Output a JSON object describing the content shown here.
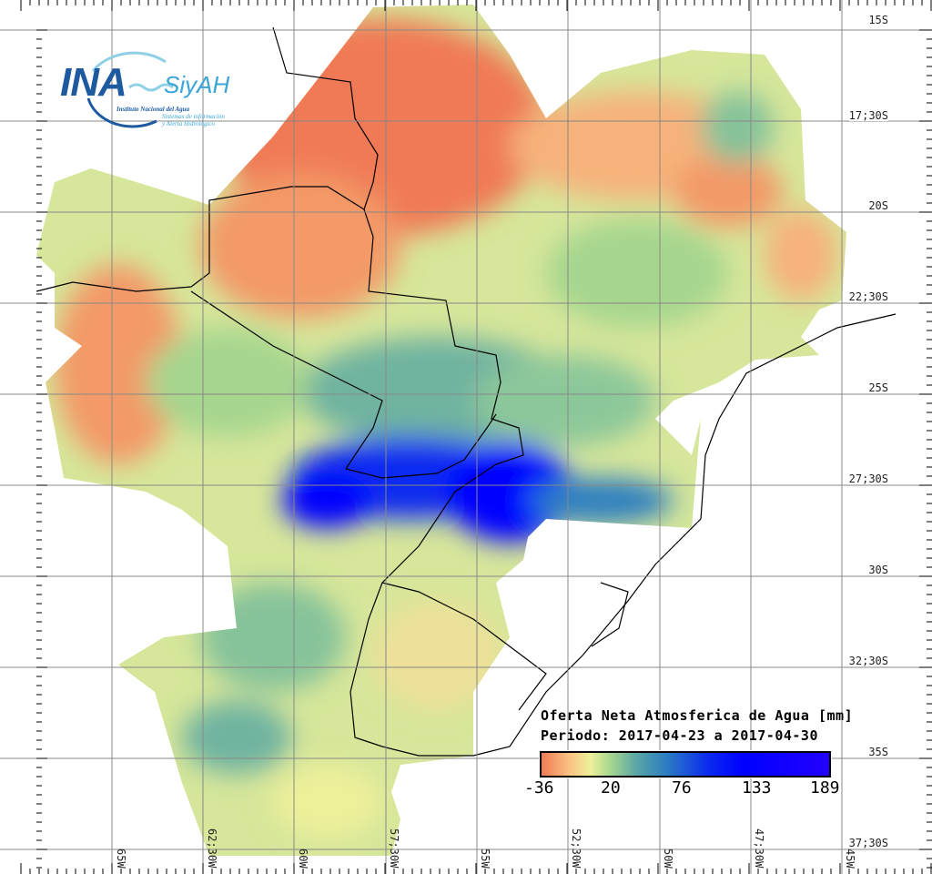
{
  "logo": {
    "name": "INA",
    "product": "SiyAH",
    "institute": "Instituto Nacional del Agua",
    "subtitle_line1": "Sistemas de información",
    "subtitle_line2": "y Alerta Hidrológico"
  },
  "legend": {
    "title": "Oferta Neta Atmosferica de Agua [mm]",
    "period": "Periodo: 2017-04-23 a 2017-04-30",
    "ticks": [
      "-36",
      "20",
      "76",
      "133",
      "189"
    ],
    "min": -36,
    "max": 189,
    "colors": [
      "#f07a55",
      "#fbc585",
      "#eef09a",
      "#a6d68e",
      "#5aa6a6",
      "#2e7fc0",
      "#0a2af0",
      "#0000ff",
      "#2200ff"
    ]
  },
  "axes": {
    "lat_labels": [
      "15S",
      "17;30S",
      "20S",
      "22;30S",
      "25S",
      "27;30S",
      "30S",
      "32;30S",
      "35S",
      "37;30S"
    ],
    "lon_labels": [
      "65W",
      "62;30W",
      "60W",
      "57;30W",
      "55W",
      "52;30W",
      "50W",
      "47;30W",
      "45W"
    ]
  }
}
